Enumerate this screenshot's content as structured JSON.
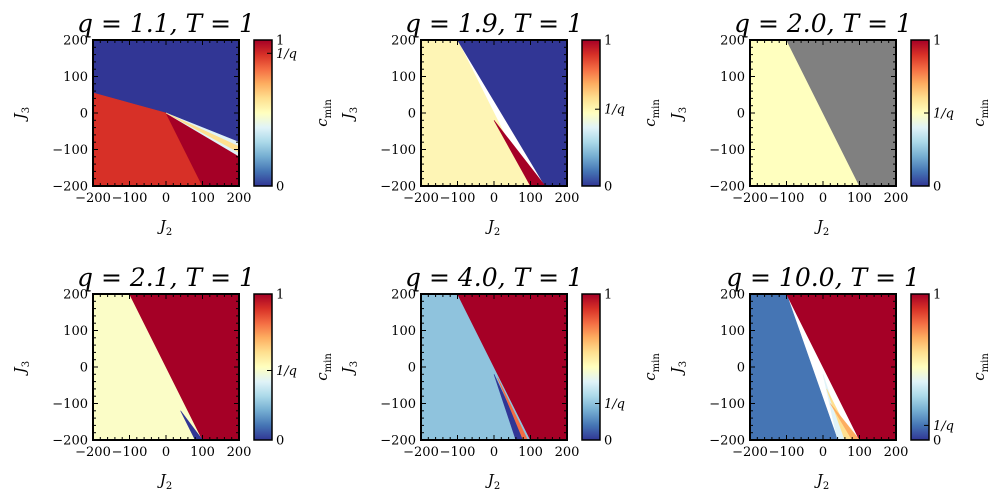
{
  "chart_data": [
    {
      "type": "heatmap",
      "title": "q = 1.1,  T = 1",
      "xlabel": "J2",
      "ylabel": "J3",
      "xlim": [
        -200,
        200
      ],
      "ylim": [
        -200,
        200
      ],
      "xticks": [
        "−200",
        "−100",
        "0",
        "100",
        "200"
      ],
      "yticks": [
        "200",
        "100",
        "0",
        "−100",
        "−200"
      ],
      "colorbar": {
        "label": "c_min",
        "ticks": [
          {
            "value": 1,
            "label": "1"
          },
          {
            "value": 0.909,
            "label": "1/q"
          },
          {
            "value": 0,
            "label": "0"
          }
        ]
      },
      "regions": [
        {
          "value": 0.02,
          "color": "#313695",
          "polygon": [
            [
              -200,
              200
            ],
            [
              200,
              200
            ],
            [
              200,
              -105
            ],
            [
              0,
              0
            ],
            [
              -200,
              55
            ]
          ]
        },
        {
          "value": 0.88,
          "color": "#d73027",
          "polygon": [
            [
              -200,
              55
            ],
            [
              0,
              0
            ],
            [
              100,
              -200
            ],
            [
              -200,
              -200
            ]
          ]
        },
        {
          "value": 1.0,
          "color": "#a50026",
          "polygon": [
            [
              0,
              0
            ],
            [
              200,
              -115
            ],
            [
              200,
              -200
            ],
            [
              100,
              -200
            ]
          ]
        },
        {
          "value": 0.45,
          "color": "#e0f3f8",
          "polygon": [
            [
              0,
              0
            ],
            [
              200,
              -80
            ],
            [
              200,
              -118
            ]
          ]
        },
        {
          "value": 0.6,
          "color": "#fee090",
          "polygon": [
            [
              0,
              0
            ],
            [
              200,
              -92
            ],
            [
              200,
              -108
            ]
          ]
        }
      ]
    },
    {
      "type": "heatmap",
      "title": "q = 1.9,  T = 1",
      "xlabel": "J2",
      "ylabel": "J3",
      "xlim": [
        -200,
        200
      ],
      "ylim": [
        -200,
        200
      ],
      "xticks": [
        "−200",
        "−100",
        "0",
        "100",
        "200"
      ],
      "yticks": [
        "200",
        "100",
        "0",
        "−100",
        "−200"
      ],
      "colorbar": {
        "label": "c_min",
        "ticks": [
          {
            "value": 1,
            "label": "1"
          },
          {
            "value": 0.526,
            "label": "1/q"
          },
          {
            "value": 0,
            "label": "0"
          }
        ]
      },
      "regions": [
        {
          "value": 0.55,
          "color": "#fef5b5",
          "polygon": [
            [
              -200,
              200
            ],
            [
              -100,
              200
            ],
            [
              100,
              -200
            ],
            [
              -200,
              -200
            ]
          ]
        },
        {
          "value": 0.02,
          "color": "#313695",
          "polygon": [
            [
              -100,
              200
            ],
            [
              200,
              200
            ],
            [
              200,
              -200
            ],
            [
              140,
              -200
            ]
          ]
        },
        {
          "value": 1.0,
          "color": "#a50026",
          "polygon": [
            [
              0,
              -20
            ],
            [
              140,
              -200
            ],
            [
              100,
              -200
            ]
          ]
        }
      ]
    },
    {
      "type": "heatmap",
      "title": "q = 2.0,  T = 1",
      "xlabel": "J2",
      "ylabel": "J3",
      "xlim": [
        -200,
        200
      ],
      "ylim": [
        -200,
        200
      ],
      "xticks": [
        "−200",
        "−100",
        "0",
        "100",
        "200"
      ],
      "yticks": [
        "200",
        "100",
        "0",
        "−100",
        "−200"
      ],
      "colorbar": {
        "label": "c_min",
        "ticks": [
          {
            "value": 1,
            "label": "1"
          },
          {
            "value": 0.5,
            "label": "1/q"
          },
          {
            "value": 0,
            "label": "0"
          }
        ]
      },
      "regions": [
        {
          "value": 0.52,
          "color": "#ffffbf",
          "polygon": [
            [
              -200,
              200
            ],
            [
              -100,
              200
            ],
            [
              100,
              -200
            ],
            [
              -200,
              -200
            ]
          ]
        },
        {
          "value": null,
          "color": "#808080",
          "polygon": [
            [
              -100,
              200
            ],
            [
              200,
              200
            ],
            [
              200,
              -200
            ],
            [
              100,
              -200
            ]
          ]
        }
      ]
    },
    {
      "type": "heatmap",
      "title": "q = 2.1,  T = 1",
      "xlabel": "J2",
      "ylabel": "J3",
      "xlim": [
        -200,
        200
      ],
      "ylim": [
        -200,
        200
      ],
      "xticks": [
        "−200",
        "−100",
        "0",
        "100",
        "200"
      ],
      "yticks": [
        "200",
        "100",
        "0",
        "−100",
        "−200"
      ],
      "colorbar": {
        "label": "c_min",
        "ticks": [
          {
            "value": 1,
            "label": "1"
          },
          {
            "value": 0.476,
            "label": "1/q"
          },
          {
            "value": 0,
            "label": "0"
          }
        ]
      },
      "regions": [
        {
          "value": 0.5,
          "color": "#fbfdc7",
          "polygon": [
            [
              -200,
              200
            ],
            [
              -100,
              200
            ],
            [
              100,
              -200
            ],
            [
              -200,
              -200
            ]
          ]
        },
        {
          "value": 1.0,
          "color": "#a50026",
          "polygon": [
            [
              -100,
              200
            ],
            [
              200,
              200
            ],
            [
              200,
              -200
            ],
            [
              100,
              -200
            ]
          ]
        },
        {
          "value": 0.02,
          "color": "#313695",
          "polygon": [
            [
              40,
              -120
            ],
            [
              100,
              -200
            ],
            [
              80,
              -200
            ]
          ]
        }
      ]
    },
    {
      "type": "heatmap",
      "title": "q = 4.0,  T = 1",
      "xlabel": "J2",
      "ylabel": "J3",
      "xlim": [
        -200,
        200
      ],
      "ylim": [
        -200,
        200
      ],
      "xticks": [
        "−200",
        "−100",
        "0",
        "100",
        "200"
      ],
      "yticks": [
        "200",
        "100",
        "0",
        "−100",
        "−200"
      ],
      "colorbar": {
        "label": "c_min",
        "ticks": [
          {
            "value": 1,
            "label": "1"
          },
          {
            "value": 0.25,
            "label": "1/q"
          },
          {
            "value": 0,
            "label": "0"
          }
        ]
      },
      "regions": [
        {
          "value": 0.3,
          "color": "#8fc3dd",
          "polygon": [
            [
              -200,
              200
            ],
            [
              -100,
              200
            ],
            [
              100,
              -200
            ],
            [
              -200,
              -200
            ]
          ]
        },
        {
          "value": 1.0,
          "color": "#a50026",
          "polygon": [
            [
              -100,
              200
            ],
            [
              200,
              200
            ],
            [
              200,
              -200
            ],
            [
              100,
              -200
            ]
          ]
        },
        {
          "value": 0.02,
          "color": "#313695",
          "polygon": [
            [
              0,
              -20
            ],
            [
              85,
              -200
            ],
            [
              60,
              -200
            ]
          ]
        },
        {
          "value": 0.7,
          "color": "#f46d43",
          "polygon": [
            [
              10,
              -30
            ],
            [
              92,
              -200
            ],
            [
              80,
              -200
            ]
          ]
        }
      ]
    },
    {
      "type": "heatmap",
      "title": "q = 10.0,  T = 1",
      "xlabel": "J2",
      "ylabel": "J3",
      "xlim": [
        -200,
        200
      ],
      "ylim": [
        -200,
        200
      ],
      "xticks": [
        "−200",
        "−100",
        "0",
        "100",
        "200"
      ],
      "yticks": [
        "200",
        "100",
        "0",
        "−100",
        "−200"
      ],
      "colorbar": {
        "label": "c_min",
        "ticks": [
          {
            "value": 1,
            "label": "1"
          },
          {
            "value": 0.1,
            "label": "1/q"
          },
          {
            "value": 0,
            "label": "0"
          }
        ]
      },
      "regions": [
        {
          "value": 0.15,
          "color": "#4575b4",
          "polygon": [
            [
              -200,
              200
            ],
            [
              -100,
              200
            ],
            [
              40,
              -200
            ],
            [
              -200,
              -200
            ]
          ]
        },
        {
          "value": 1.0,
          "color": "#a50026",
          "polygon": [
            [
              -100,
              200
            ],
            [
              200,
              200
            ],
            [
              200,
              -200
            ],
            [
              100,
              -200
            ]
          ]
        },
        {
          "value": 0.4,
          "color": "#e0f3f8",
          "polygon": [
            [
              0,
              -20
            ],
            [
              40,
              -200
            ],
            [
              60,
              -200
            ]
          ]
        },
        {
          "value": 0.6,
          "color": "#fee090",
          "polygon": [
            [
              10,
              -60
            ],
            [
              60,
              -200
            ],
            [
              80,
              -200
            ]
          ]
        },
        {
          "value": 0.75,
          "color": "#fdae61",
          "polygon": [
            [
              20,
              -100
            ],
            [
              80,
              -200
            ],
            [
              100,
              -200
            ]
          ]
        }
      ]
    }
  ]
}
